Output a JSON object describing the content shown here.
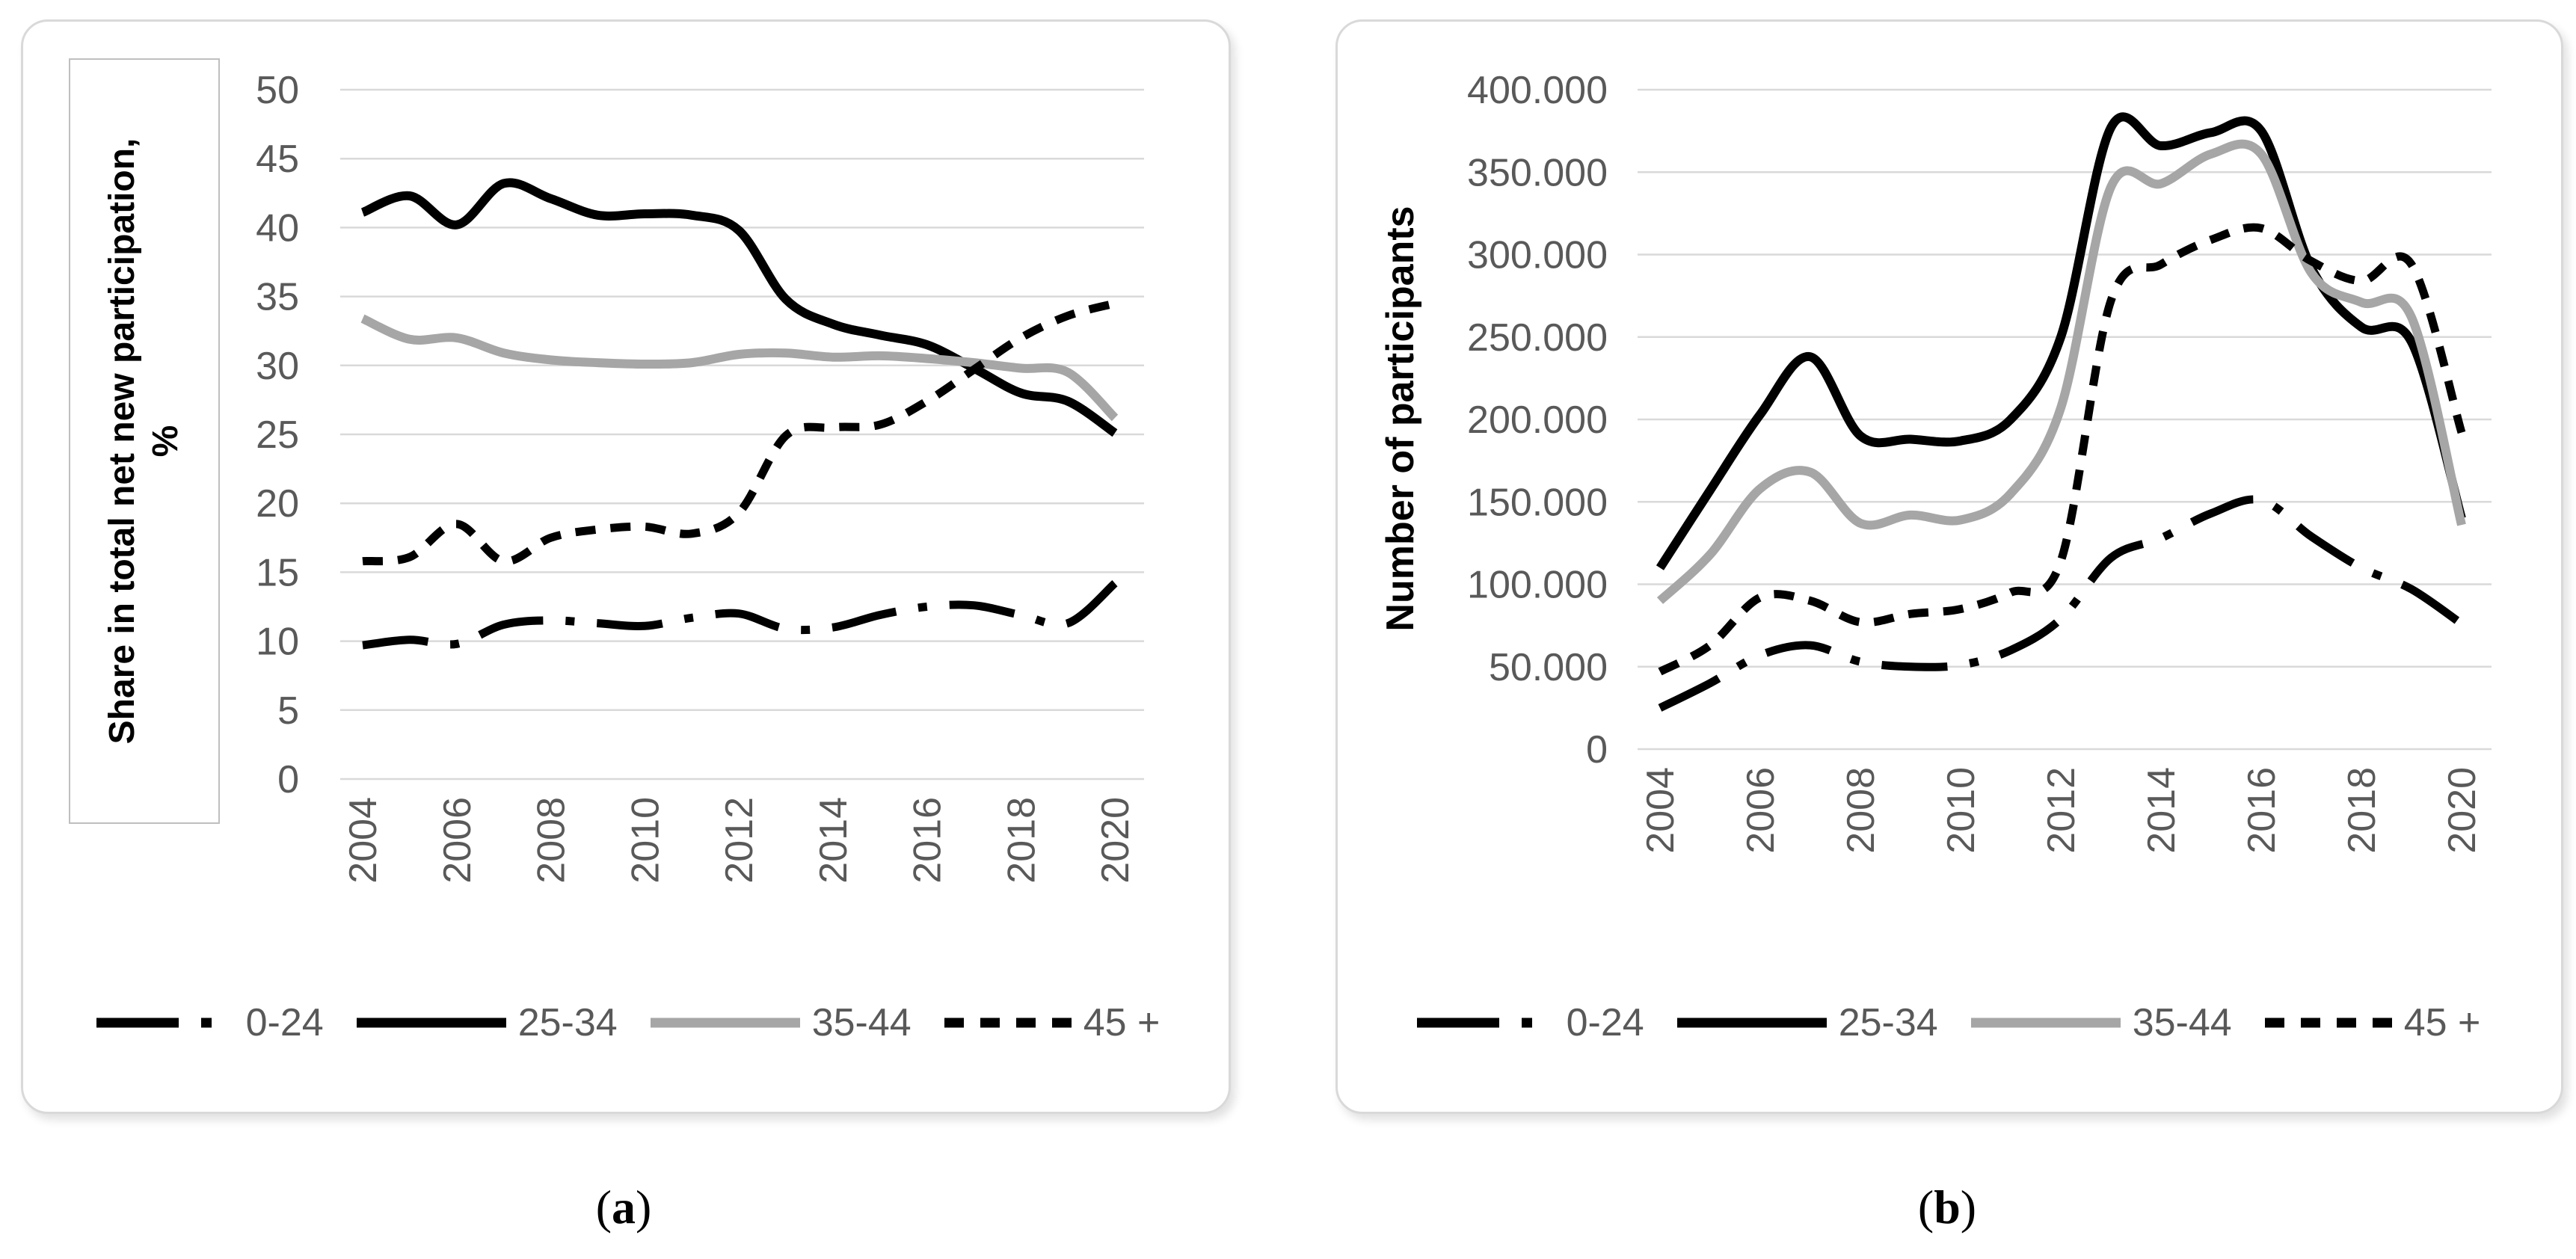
{
  "captions": {
    "a": {
      "open": "(",
      "letter": "a",
      "close": ")"
    },
    "b": {
      "open": "(",
      "letter": "b",
      "close": ")"
    }
  },
  "chart_data": [
    {
      "id": "a",
      "type": "line",
      "ylabel_lines": [
        "Share in total net new participation,",
        "%"
      ],
      "x": [
        2004,
        2005,
        2006,
        2007,
        2008,
        2009,
        2010,
        2011,
        2012,
        2013,
        2014,
        2015,
        2016,
        2017,
        2018,
        2019,
        2020
      ],
      "xticks": [
        "2004",
        "2006",
        "2008",
        "2010",
        "2012",
        "2014",
        "2016",
        "2018",
        "2020"
      ],
      "ytick_labels": [
        "50",
        "45",
        "40",
        "35",
        "30",
        "25",
        "20",
        "15",
        "10",
        "5",
        "0"
      ],
      "ytick_values": [
        50,
        45,
        40,
        35,
        30,
        25,
        20,
        15,
        10,
        5,
        0
      ],
      "ylim": [
        0,
        50
      ],
      "grid": "horizontal",
      "legend_position": "bottom",
      "line_smoothing": true,
      "series": [
        {
          "name": "0-24",
          "style": "long-dash-dot",
          "color": "#000000",
          "values": [
            9.7,
            10.1,
            9.8,
            11.2,
            11.5,
            11.3,
            11.1,
            11.7,
            12.0,
            10.9,
            11.0,
            11.9,
            12.5,
            12.6,
            11.9,
            11.3,
            14.2
          ]
        },
        {
          "name": "25-34",
          "style": "solid",
          "color": "#000000",
          "values": [
            41.1,
            42.3,
            40.2,
            43.2,
            42.1,
            40.9,
            41.0,
            40.9,
            39.8,
            34.8,
            33.0,
            32.2,
            31.5,
            29.8,
            28.0,
            27.4,
            25.1
          ]
        },
        {
          "name": "35-44",
          "style": "solid",
          "color": "#a6a6a6",
          "values": [
            33.4,
            31.9,
            32.0,
            30.9,
            30.4,
            30.2,
            30.1,
            30.2,
            30.8,
            30.9,
            30.6,
            30.7,
            30.5,
            30.2,
            29.8,
            29.5,
            26.2
          ]
        },
        {
          "name": "45 +",
          "style": "dash",
          "color": "#000000",
          "values": [
            15.8,
            16.1,
            18.5,
            15.8,
            17.5,
            18.1,
            18.3,
            17.8,
            19.3,
            24.9,
            25.5,
            25.7,
            27.4,
            29.7,
            32.0,
            33.6,
            34.5
          ]
        }
      ]
    },
    {
      "id": "b",
      "type": "line",
      "ylabel": "Number of participants",
      "x": [
        2004,
        2005,
        2006,
        2007,
        2008,
        2009,
        2010,
        2011,
        2012,
        2013,
        2014,
        2015,
        2016,
        2017,
        2018,
        2019,
        2020
      ],
      "xticks": [
        "2004",
        "2006",
        "2008",
        "2010",
        "2012",
        "2014",
        "2016",
        "2018",
        "2020"
      ],
      "ytick_labels": [
        "400.000",
        "350.000",
        "300.000",
        "250.000",
        "200.000",
        "150.000",
        "100.000",
        "50.000",
        "0"
      ],
      "ytick_values": [
        400000,
        350000,
        300000,
        250000,
        200000,
        150000,
        100000,
        50000,
        0
      ],
      "ylim": [
        0,
        400000
      ],
      "grid": "horizontal",
      "legend_position": "bottom",
      "line_smoothing": true,
      "series": [
        {
          "name": "0-24",
          "style": "long-dash-dot",
          "color": "#000000",
          "values": [
            25000,
            40000,
            57000,
            63000,
            53000,
            50000,
            51000,
            60000,
            79000,
            116000,
            128000,
            143000,
            151000,
            129000,
            110000,
            97000,
            76000
          ]
        },
        {
          "name": "25-34",
          "style": "solid",
          "color": "#000000",
          "values": [
            110000,
            157000,
            203000,
            238000,
            190000,
            188000,
            187000,
            200000,
            250000,
            377000,
            366000,
            374000,
            375000,
            292000,
            256000,
            247000,
            140000
          ]
        },
        {
          "name": "35-44",
          "style": "solid",
          "color": "#a6a6a6",
          "values": [
            90000,
            118000,
            158000,
            168000,
            137000,
            142000,
            139000,
            155000,
            207000,
            341000,
            343000,
            361000,
            361000,
            289000,
            271000,
            262000,
            136000
          ]
        },
        {
          "name": "45 +",
          "style": "dash",
          "color": "#000000",
          "values": [
            47000,
            63000,
            92000,
            90000,
            77000,
            82000,
            85000,
            95000,
            114000,
            272000,
            294000,
            309000,
            316000,
            296000,
            284000,
            294000,
            192000
          ]
        }
      ]
    }
  ]
}
